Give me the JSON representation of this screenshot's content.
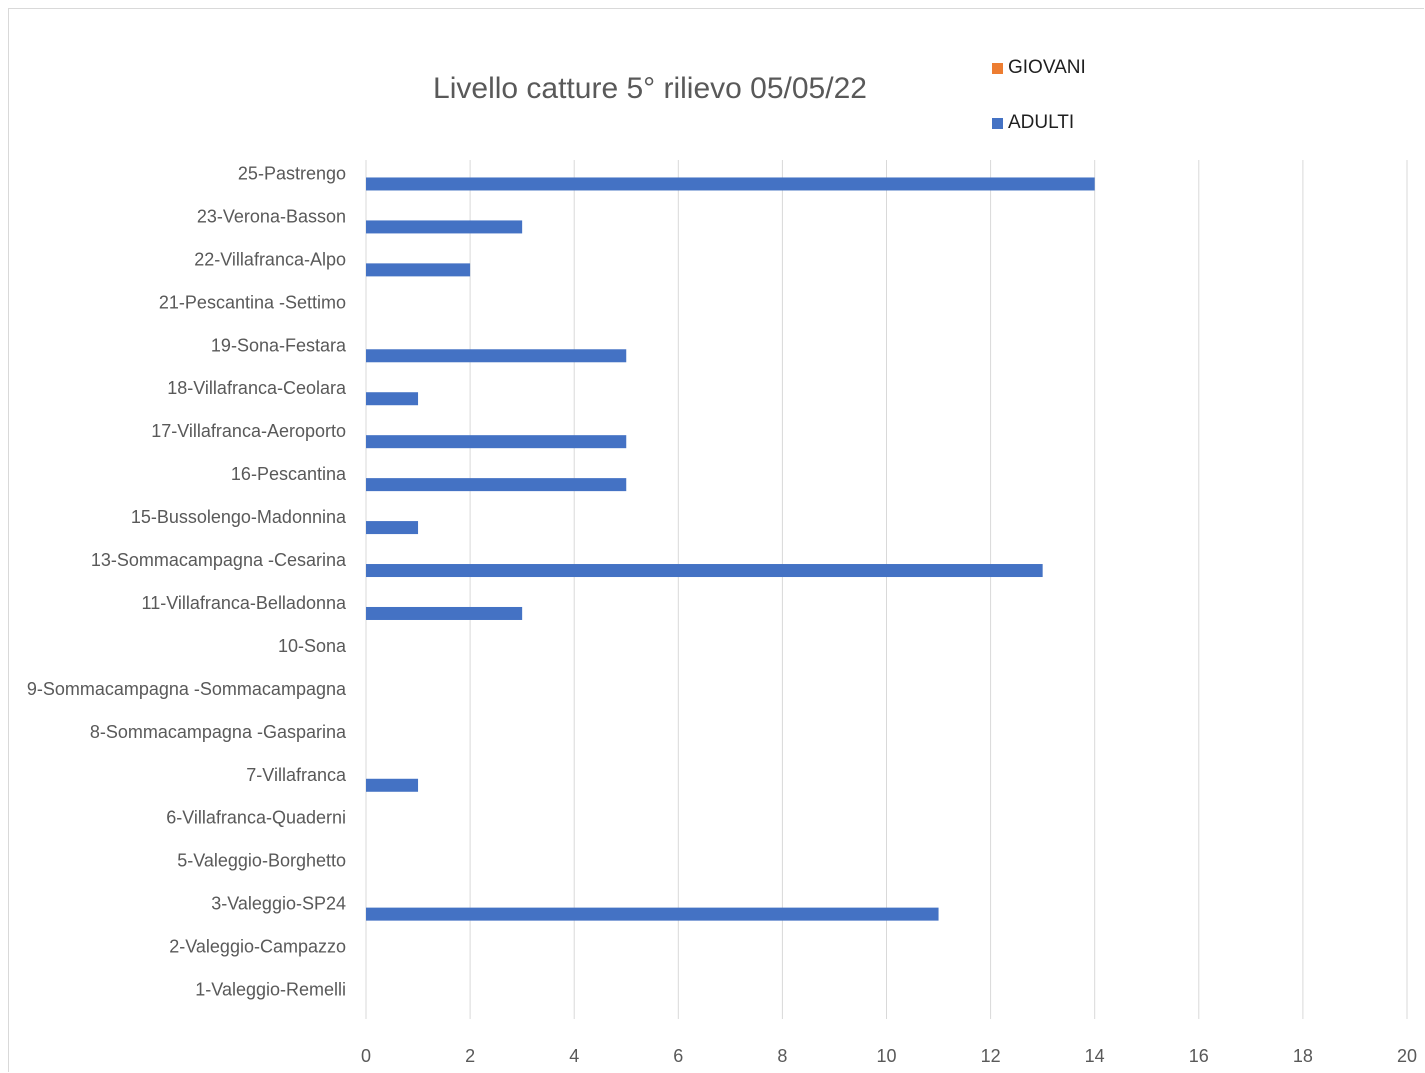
{
  "chart_data": {
    "type": "bar",
    "orientation": "horizontal",
    "title": "Livello catture 5° rilievo 05/05/22",
    "categories": [
      "25-Pastrengo",
      "23-Verona-Basson",
      "22-Villafranca-Alpo",
      "21-Pescantina -Settimo",
      "19-Sona-Festara",
      "18-Villafranca-Ceolara",
      "17-Villafranca-Aeroporto",
      "16-Pescantina",
      "15-Bussolengo-Madonnina",
      "13-Sommacampagna -Cesarina",
      "11-Villafranca-Belladonna",
      "10-Sona",
      "9-Sommacampagna -Sommacampagna",
      "8-Sommacampagna -Gasparina",
      "7-Villafranca",
      "6-Villafranca-Quaderni",
      "5-Valeggio-Borghetto",
      "3-Valeggio-SP24",
      "2-Valeggio-Campazzo",
      "1-Valeggio-Remelli"
    ],
    "series": [
      {
        "name": "GIOVANI",
        "color": "#ED7D31",
        "values": [
          0,
          0,
          0,
          0,
          0,
          0,
          0,
          0,
          0,
          0,
          0,
          0,
          0,
          0,
          0,
          0,
          0,
          0,
          0,
          0
        ]
      },
      {
        "name": "ADULTI",
        "color": "#4472C4",
        "values": [
          14,
          3,
          2,
          0,
          5,
          1,
          5,
          5,
          1,
          13,
          3,
          0,
          0,
          0,
          1,
          0,
          0,
          11,
          0,
          0
        ]
      }
    ],
    "xlim": [
      0,
      20
    ],
    "xticks": [
      "0",
      "2",
      "4",
      "6",
      "8",
      "10",
      "12",
      "14",
      "16",
      "18",
      "20"
    ],
    "grid": "vertical",
    "legend_position": "top-right",
    "xlabel": "",
    "ylabel": ""
  }
}
